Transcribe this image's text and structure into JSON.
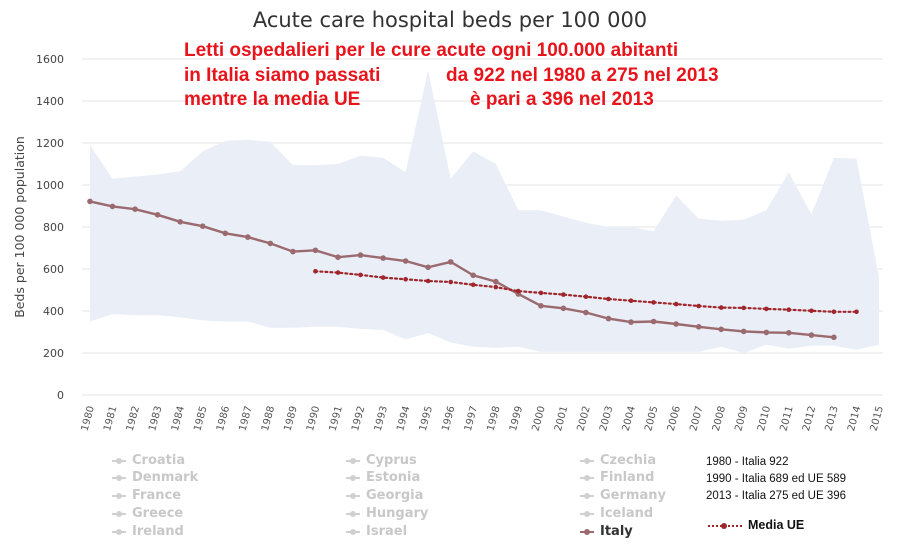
{
  "chart_data": {
    "type": "line",
    "title": "Acute care hospital beds per 100 000",
    "ylabel": "Beds per 100 000 population",
    "xlabel": "",
    "ylim": [
      0,
      1600
    ],
    "yticks": [
      0,
      200,
      400,
      600,
      800,
      1000,
      1200,
      1400,
      1600
    ],
    "x": [
      1980,
      1981,
      1982,
      1983,
      1984,
      1985,
      1986,
      1987,
      1988,
      1989,
      1990,
      1991,
      1992,
      1993,
      1994,
      1995,
      1996,
      1997,
      1998,
      1999,
      2000,
      2001,
      2002,
      2003,
      2004,
      2005,
      2006,
      2007,
      2008,
      2009,
      2010,
      2011,
      2012,
      2013,
      2014,
      2015
    ],
    "range_band": {
      "upper": [
        1190,
        1030,
        1040,
        1050,
        1065,
        1160,
        1210,
        1215,
        1205,
        1095,
        1095,
        1100,
        1140,
        1130,
        1060,
        1545,
        1030,
        1160,
        1100,
        880,
        880,
        850,
        820,
        800,
        800,
        780,
        950,
        840,
        830,
        835,
        880,
        1060,
        860,
        1130,
        1125,
        560
      ],
      "lower": [
        350,
        385,
        380,
        380,
        370,
        355,
        350,
        350,
        320,
        320,
        325,
        325,
        315,
        310,
        265,
        295,
        250,
        230,
        225,
        230,
        205,
        205,
        205,
        205,
        205,
        205,
        205,
        205,
        230,
        200,
        240,
        220,
        235,
        235,
        215,
        240
      ]
    },
    "series": [
      {
        "name": "Italy",
        "color": "#9a6a6e",
        "values": [
          922,
          898,
          885,
          858,
          825,
          804,
          770,
          752,
          722,
          683,
          689,
          656,
          666,
          652,
          638,
          608,
          634,
          570,
          540,
          481,
          425,
          413,
          393,
          364,
          347,
          350,
          338,
          325,
          313,
          303,
          298,
          296,
          285,
          275,
          null,
          null
        ]
      },
      {
        "name": "Media UE",
        "color": "#a0262b",
        "values": [
          null,
          null,
          null,
          null,
          null,
          null,
          null,
          null,
          null,
          null,
          589,
          583,
          572,
          559,
          551,
          543,
          538,
          525,
          514,
          495,
          486,
          478,
          468,
          457,
          449,
          441,
          433,
          424,
          416,
          415,
          410,
          406,
          401,
          396,
          396,
          null
        ]
      }
    ]
  },
  "annotation": {
    "line1a": "Letti ospedalieri per le cure acute ogni 100.000 abitanti",
    "line2a": "in Italia siamo passati",
    "line2b": "da 922 nel 1980 a 275 nel 2013",
    "line3a": "mentre la media UE",
    "line3b": "è pari a 396 nel 2013"
  },
  "legend": {
    "col1": [
      "Croatia",
      "Denmark",
      "France",
      "Greece",
      "Ireland"
    ],
    "col2": [
      "Cyprus",
      "Estonia",
      "Georgia",
      "Hungary",
      "Israel"
    ],
    "col3": [
      "Czechia",
      "Finland",
      "Germany",
      "Iceland",
      "Italy"
    ]
  },
  "notes": [
    "1980 - Italia 922",
    "1990 - Italia 689 ed UE 589",
    "2013 - Italia 275 ed UE 396"
  ],
  "media_label": "Media UE",
  "colors": {
    "band": "#e9eef7",
    "italy": "#9a6a6e",
    "ue": "#a0262b",
    "annotation": "#e8141c"
  }
}
